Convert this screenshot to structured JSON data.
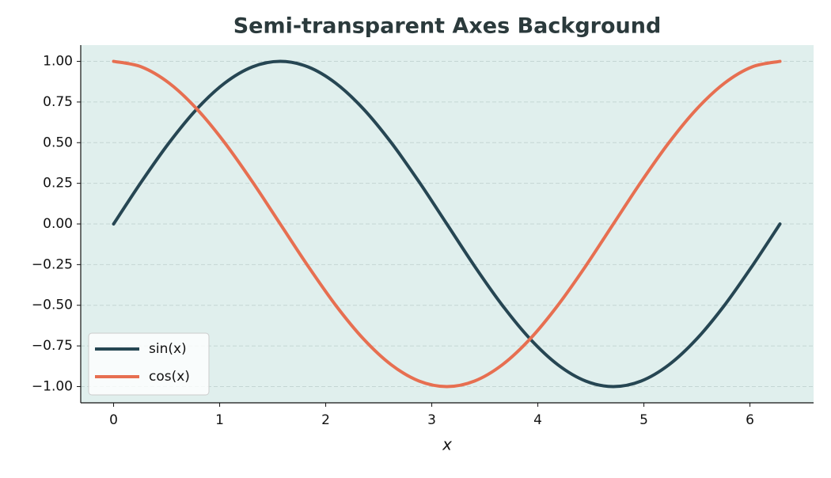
{
  "chart_data": {
    "type": "line",
    "title": "Semi-transparent Axes Background",
    "xlabel": "x",
    "x": [
      0,
      0.262,
      0.524,
      0.785,
      1.047,
      1.309,
      1.571,
      1.833,
      2.094,
      2.356,
      2.618,
      2.88,
      3.142,
      3.403,
      3.665,
      3.927,
      4.189,
      4.451,
      4.712,
      4.974,
      5.236,
      5.498,
      5.76,
      6.021,
      6.283
    ],
    "series": [
      {
        "name": "sin(x)",
        "color": "#264653",
        "values": [
          0,
          0.259,
          0.5,
          0.707,
          0.866,
          0.966,
          1,
          0.966,
          0.866,
          0.707,
          0.5,
          0.259,
          0,
          -0.259,
          -0.5,
          -0.707,
          -0.866,
          -0.966,
          -1,
          -0.966,
          -0.866,
          -0.707,
          -0.5,
          -0.259,
          0
        ]
      },
      {
        "name": "cos(x)",
        "color": "#e76f51",
        "values": [
          1,
          0.966,
          0.866,
          0.707,
          0.5,
          0.259,
          0,
          -0.259,
          -0.5,
          -0.707,
          -0.866,
          -0.966,
          -1,
          -0.966,
          -0.866,
          -0.707,
          -0.5,
          -0.259,
          0,
          0.259,
          0.5,
          0.707,
          0.866,
          0.966,
          1
        ]
      }
    ],
    "xlim": [
      -0.31,
      6.6
    ],
    "ylim": [
      -1.1,
      1.1
    ],
    "xticks": [
      0,
      1,
      2,
      3,
      4,
      5,
      6
    ],
    "yticks": [
      {
        "value": -1,
        "label": "−1.00"
      },
      {
        "value": -0.75,
        "label": "−0.75"
      },
      {
        "value": -0.5,
        "label": "−0.50"
      },
      {
        "value": -0.25,
        "label": "−0.25"
      },
      {
        "value": 0,
        "label": "0.00"
      },
      {
        "value": 0.25,
        "label": "0.25"
      },
      {
        "value": 0.5,
        "label": "0.50"
      },
      {
        "value": 0.75,
        "label": "0.75"
      },
      {
        "value": 1,
        "label": "1.00"
      }
    ],
    "grid": true,
    "legend": "lower left",
    "background": "#e0efed"
  }
}
